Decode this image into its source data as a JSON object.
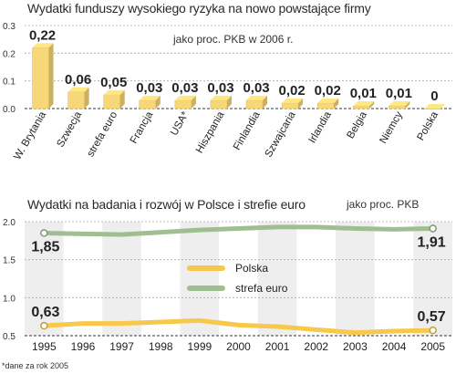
{
  "chart_data": [
    {
      "type": "bar",
      "title": "Wydatki funduszy wysokiego ryzyka na nowo powstające firmy",
      "subtitle": "jako proc. PKB w 2006 r.",
      "categories": [
        "W. Brytania",
        "Szwecja",
        "strefa euro",
        "Francja",
        "USA*",
        "Hiszpania",
        "Finlandia",
        "Szwajcaria",
        "Irlandia",
        "Belgia",
        "Niemcy",
        "Polska"
      ],
      "values": [
        0.22,
        0.06,
        0.05,
        0.03,
        0.03,
        0.03,
        0.03,
        0.02,
        0.02,
        0.01,
        0.01,
        0
      ],
      "value_labels": [
        "0,22",
        "0,06",
        "0,05",
        "0,03",
        "0,03",
        "0,03",
        "0,03",
        "0,02",
        "0,02",
        "0,01",
        "0,01",
        "0"
      ],
      "yticks": [
        "0.3",
        "0.2",
        "0.1",
        "0.0"
      ],
      "ylim": [
        0,
        0.3
      ],
      "grid": true,
      "bar_color": "#f7d778"
    },
    {
      "type": "line",
      "title": "Wydatki na badania i rozwój w Polsce i strefie euro",
      "subtitle": "jako proc. PKB",
      "x": [
        "1995",
        "1996",
        "1997",
        "1998",
        "1999",
        "2000",
        "2001",
        "2002",
        "2003",
        "2004",
        "2005"
      ],
      "series": [
        {
          "name": "Polska",
          "values": [
            0.63,
            0.66,
            0.66,
            0.68,
            0.7,
            0.64,
            0.62,
            0.58,
            0.54,
            0.56,
            0.57
          ],
          "color": "#f7c84a",
          "end_labels": [
            "0,63",
            "0,57"
          ]
        },
        {
          "name": "strefa euro",
          "values": [
            1.85,
            1.84,
            1.83,
            1.86,
            1.89,
            1.91,
            1.93,
            1.93,
            1.91,
            1.9,
            1.91
          ],
          "color": "#9fbf92",
          "end_labels": [
            "1,85",
            "1,91"
          ]
        }
      ],
      "yticks": [
        "2.0",
        "1.5",
        "1.0",
        "0.5"
      ],
      "ylim": [
        0.5,
        2.0
      ],
      "grid": true,
      "legend": "center-left"
    }
  ],
  "footnote": "*dane za rok 2005"
}
